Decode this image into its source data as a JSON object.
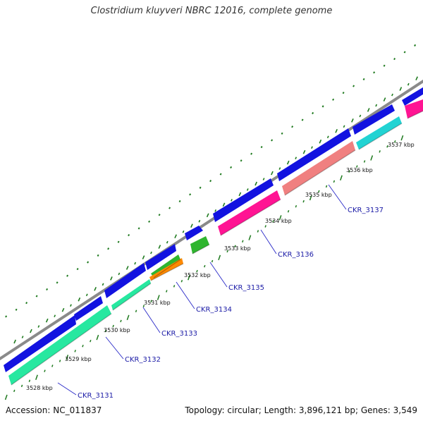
{
  "title": "Clostridium kluyveri NBRC 12016, complete genome",
  "accession": "Accession: NC_011837",
  "genome_info": "Topology: circular; Length: 3,896,121 bp; Genes: 3,549",
  "colors": {
    "backbone": "#8a8a8a",
    "forward_cds": "#1212e0",
    "ticks": "#1f7a1f",
    "label_line": "#2a2ac8"
  },
  "kbp_labels": [
    "3528 kbp",
    "3529 kbp",
    "3530 kbp",
    "3531 kbp",
    "3532 kbp",
    "3533 kbp",
    "3534 kbp",
    "3535 kbp",
    "3536 kbp",
    "3537 kbp"
  ],
  "gene_labels": [
    "CKR_3131",
    "CKR_3132",
    "CKR_3133",
    "CKR_3134",
    "CKR_3135",
    "CKR_3136",
    "CKR_3137"
  ],
  "reverse_features": [
    {
      "label": "CKR_3131",
      "color": "#27e8a0"
    },
    {
      "label": "CKR_3132",
      "color": "#27e8a0"
    },
    {
      "label": "CKR_3133",
      "color": "#2fb52f"
    },
    {
      "label": "CKR_3134",
      "color": "#ff8a00"
    },
    {
      "label": "CKR_3135",
      "color": "#ff1493"
    },
    {
      "label": "CKR_3136",
      "color": "#f08080"
    },
    {
      "label": "CKR_3137",
      "color": "#22d3d3"
    },
    {
      "label": "",
      "color": "#22d3d3"
    },
    {
      "label": "",
      "color": "#ff1493"
    }
  ]
}
